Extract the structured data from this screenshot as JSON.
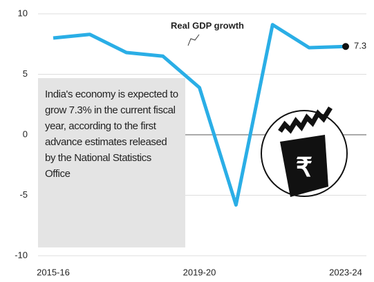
{
  "chart_data": {
    "type": "line",
    "categories": [
      "2015-16",
      null,
      null,
      null,
      "2019-20",
      null,
      null,
      null,
      "2023-24"
    ],
    "series": [
      {
        "name": "Real GDP growth",
        "color": "#2aaee6",
        "values": [
          8.0,
          8.3,
          6.8,
          6.5,
          3.9,
          -5.8,
          9.1,
          7.2,
          7.3
        ]
      }
    ],
    "ylim": [
      -10,
      10
    ],
    "yticks": [
      -10,
      -5,
      0,
      5,
      10
    ],
    "grid": true,
    "annotations": [
      "India's economy is expected to grow 7.3% in the current fiscal year, according to the first advance estimates released by the National Statistics Office"
    ]
  }
}
